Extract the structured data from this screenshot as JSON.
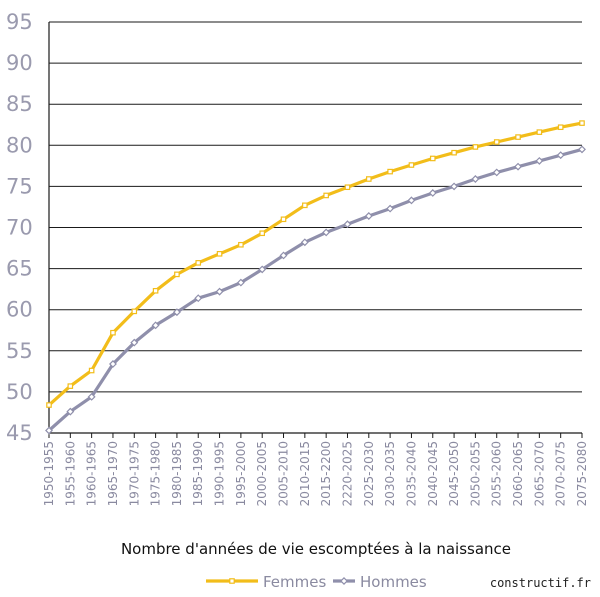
{
  "chart_data": {
    "type": "line",
    "title": "",
    "xlabel": "Nombre d'années de vie escomptées à la naissance",
    "ylabel": "",
    "ylim": [
      45,
      95
    ],
    "yticks": [
      45,
      50,
      55,
      60,
      65,
      70,
      75,
      80,
      85,
      90,
      95
    ],
    "grid": true,
    "legend_position": "bottom",
    "categories": [
      "1950-1955",
      "1955-1960",
      "1960-1965",
      "1965-1970",
      "1970-1975",
      "1975-1980",
      "1980-1985",
      "1985-1990",
      "1990-1995",
      "1995-2000",
      "2000-2005",
      "2005-2010",
      "2010-2015",
      "2015-2200",
      "2220-2025",
      "2025-2030",
      "2030-2035",
      "2035-2040",
      "2040-2045",
      "2045-2050",
      "2050-2055",
      "2055-2060",
      "2060-2065",
      "2065-2070",
      "2070-2075",
      "2075-2080"
    ],
    "series": [
      {
        "name": "Femmes",
        "color": "#f2bd1a",
        "values": [
          48.4,
          50.7,
          52.6,
          57.2,
          59.8,
          62.3,
          64.3,
          65.7,
          66.8,
          67.9,
          69.3,
          71.0,
          72.7,
          73.9,
          74.9,
          75.9,
          76.8,
          77.6,
          78.4,
          79.1,
          79.8,
          80.4,
          81.0,
          81.6,
          82.2,
          82.7
        ]
      },
      {
        "name": "Hommes",
        "color": "#8f8fab",
        "values": [
          45.3,
          47.6,
          49.4,
          53.4,
          56.0,
          58.1,
          59.7,
          61.4,
          62.2,
          63.3,
          64.9,
          66.6,
          68.2,
          69.4,
          70.4,
          71.4,
          72.3,
          73.3,
          74.2,
          75.0,
          75.9,
          76.7,
          77.4,
          78.1,
          78.8,
          79.5
        ]
      }
    ]
  },
  "credit": "constructif.fr"
}
